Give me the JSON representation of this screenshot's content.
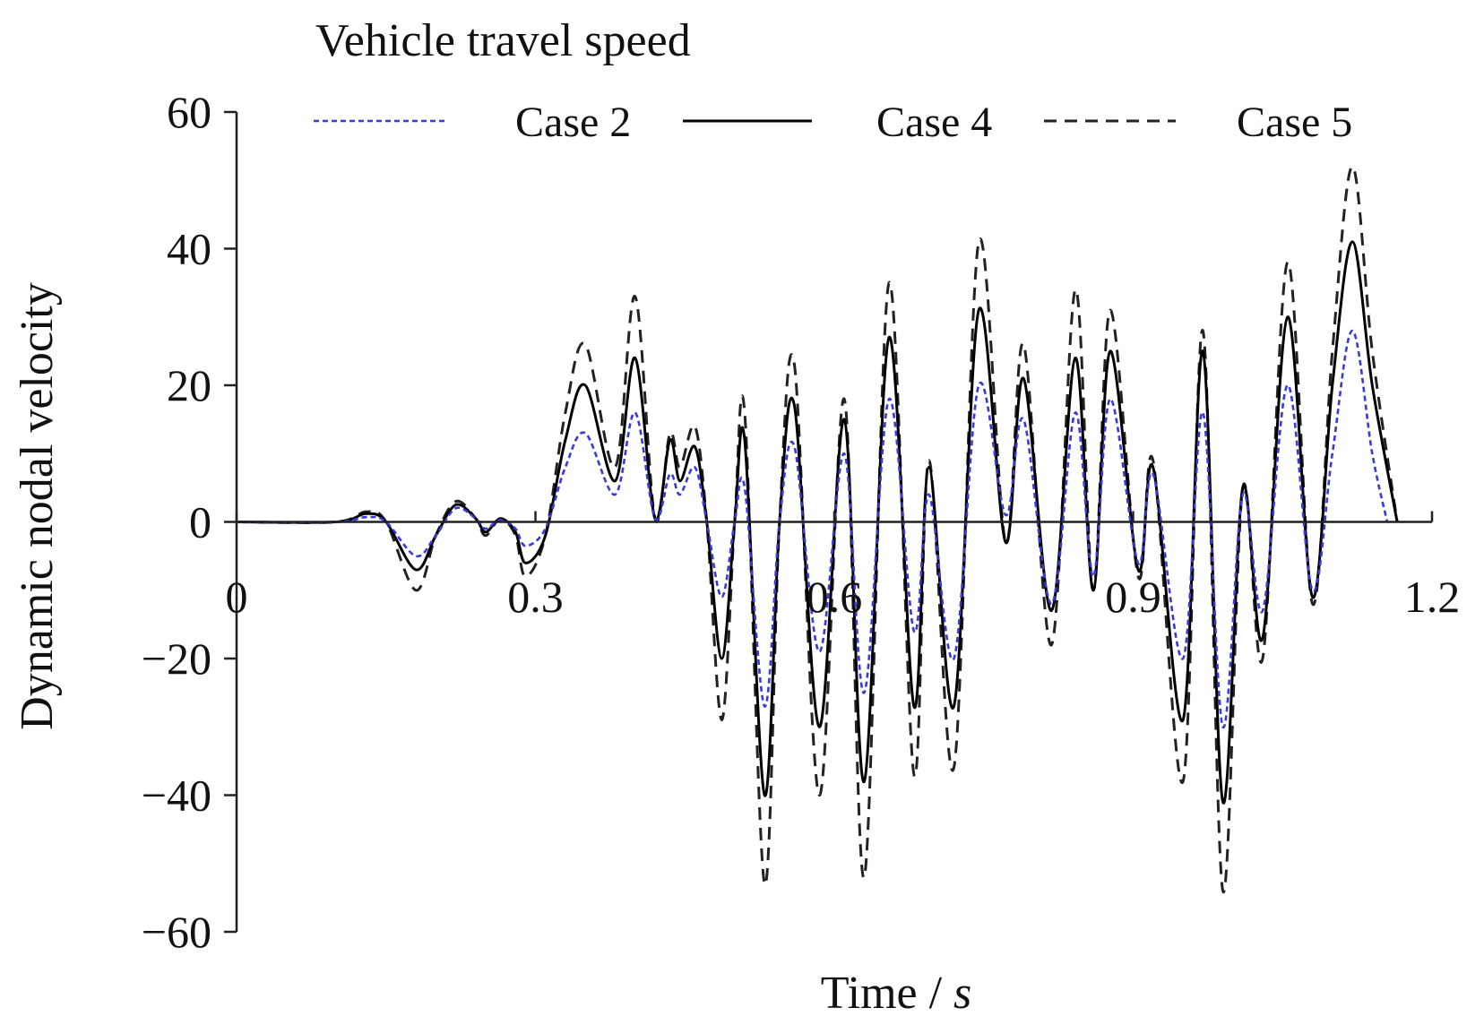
{
  "chart_data": {
    "type": "line",
    "title": "Vehicle travel speed",
    "xlabel": "Time / ",
    "xlabel_unit": "s",
    "ylabel": "Dynamic nodal velocity",
    "xlim": [
      0,
      1.2
    ],
    "ylim": [
      -60,
      60
    ],
    "x_ticks": [
      0,
      0.3,
      0.6,
      0.9,
      1.2
    ],
    "x_tick_labels": [
      "0",
      "0.3",
      "0.6",
      "0.9",
      "1.2"
    ],
    "y_ticks": [
      60,
      40,
      20,
      0,
      -20,
      -40,
      -60
    ],
    "y_tick_labels": [
      "60",
      "40",
      "20",
      "0",
      "−20",
      "−40",
      "−60"
    ],
    "grid": false,
    "legend_position": "top",
    "series": [
      {
        "name": "Case 2",
        "color": "#3a3ad8",
        "dash": "dotted",
        "points": [
          [
            0,
            0
          ],
          [
            0.1,
            0
          ],
          [
            0.13,
            0.7
          ],
          [
            0.15,
            0
          ],
          [
            0.18,
            -5
          ],
          [
            0.2,
            -2
          ],
          [
            0.22,
            2
          ],
          [
            0.24,
            0.5
          ],
          [
            0.25,
            -1
          ],
          [
            0.265,
            0.3
          ],
          [
            0.28,
            -1
          ],
          [
            0.29,
            -3.5
          ],
          [
            0.31,
            -1
          ],
          [
            0.33,
            8
          ],
          [
            0.35,
            13
          ],
          [
            0.38,
            4
          ],
          [
            0.4,
            16
          ],
          [
            0.42,
            0.5
          ],
          [
            0.435,
            7
          ],
          [
            0.445,
            4
          ],
          [
            0.46,
            8
          ],
          [
            0.472,
            0
          ],
          [
            0.487,
            -11
          ],
          [
            0.5,
            0
          ],
          [
            0.51,
            5
          ],
          [
            0.53,
            -27
          ],
          [
            0.545,
            0
          ],
          [
            0.56,
            11
          ],
          [
            0.585,
            -19
          ],
          [
            0.61,
            10
          ],
          [
            0.63,
            -25
          ],
          [
            0.655,
            18
          ],
          [
            0.68,
            -16
          ],
          [
            0.695,
            4
          ],
          [
            0.72,
            -20
          ],
          [
            0.745,
            20
          ],
          [
            0.772,
            1
          ],
          [
            0.79,
            15
          ],
          [
            0.818,
            -12
          ],
          [
            0.842,
            16
          ],
          [
            0.86,
            -8
          ],
          [
            0.877,
            18
          ],
          [
            0.905,
            -6
          ],
          [
            0.92,
            7
          ],
          [
            0.95,
            -20
          ],
          [
            0.97,
            16
          ],
          [
            0.99,
            -30
          ],
          [
            1.01,
            4
          ],
          [
            1.03,
            -13
          ],
          [
            1.055,
            20
          ],
          [
            1.08,
            -10
          ],
          [
            1.1,
            10
          ],
          [
            1.12,
            28
          ],
          [
            1.14,
            10
          ],
          [
            1.155,
            0
          ]
        ]
      },
      {
        "name": "Case 4",
        "color": "#000000",
        "dash": "solid",
        "points": [
          [
            0,
            0
          ],
          [
            0.1,
            0
          ],
          [
            0.13,
            1.2
          ],
          [
            0.15,
            0
          ],
          [
            0.18,
            -7
          ],
          [
            0.2,
            -2
          ],
          [
            0.22,
            2.5
          ],
          [
            0.24,
            0.5
          ],
          [
            0.25,
            -1.5
          ],
          [
            0.265,
            0.5
          ],
          [
            0.28,
            -1.5
          ],
          [
            0.29,
            -6
          ],
          [
            0.31,
            -2
          ],
          [
            0.33,
            12
          ],
          [
            0.35,
            20
          ],
          [
            0.38,
            6
          ],
          [
            0.4,
            24
          ],
          [
            0.42,
            0.5
          ],
          [
            0.435,
            12
          ],
          [
            0.445,
            6
          ],
          [
            0.46,
            11
          ],
          [
            0.472,
            0
          ],
          [
            0.487,
            -20
          ],
          [
            0.5,
            0
          ],
          [
            0.51,
            12
          ],
          [
            0.53,
            -40
          ],
          [
            0.545,
            0
          ],
          [
            0.56,
            17
          ],
          [
            0.585,
            -30
          ],
          [
            0.61,
            15
          ],
          [
            0.63,
            -38
          ],
          [
            0.655,
            27
          ],
          [
            0.68,
            -27
          ],
          [
            0.695,
            8
          ],
          [
            0.72,
            -27
          ],
          [
            0.745,
            31
          ],
          [
            0.772,
            -3
          ],
          [
            0.79,
            21
          ],
          [
            0.818,
            -13
          ],
          [
            0.842,
            24
          ],
          [
            0.86,
            -10
          ],
          [
            0.877,
            25
          ],
          [
            0.905,
            -7
          ],
          [
            0.92,
            8
          ],
          [
            0.95,
            -29
          ],
          [
            0.97,
            25
          ],
          [
            0.99,
            -41
          ],
          [
            1.01,
            5
          ],
          [
            1.03,
            -17
          ],
          [
            1.055,
            30
          ],
          [
            1.08,
            -11
          ],
          [
            1.1,
            20
          ],
          [
            1.12,
            41
          ],
          [
            1.14,
            20
          ],
          [
            1.165,
            0
          ]
        ]
      },
      {
        "name": "Case 5",
        "color": "#222222",
        "dash": "dashed",
        "points": [
          [
            0,
            0
          ],
          [
            0.1,
            0
          ],
          [
            0.13,
            1.5
          ],
          [
            0.15,
            0
          ],
          [
            0.18,
            -10
          ],
          [
            0.2,
            -2
          ],
          [
            0.22,
            3
          ],
          [
            0.24,
            0.5
          ],
          [
            0.25,
            -2
          ],
          [
            0.265,
            0.5
          ],
          [
            0.28,
            -2
          ],
          [
            0.29,
            -8
          ],
          [
            0.31,
            -2
          ],
          [
            0.33,
            16
          ],
          [
            0.35,
            26
          ],
          [
            0.38,
            8
          ],
          [
            0.4,
            33
          ],
          [
            0.42,
            0.5
          ],
          [
            0.435,
            13
          ],
          [
            0.445,
            8
          ],
          [
            0.46,
            14
          ],
          [
            0.472,
            0
          ],
          [
            0.487,
            -29
          ],
          [
            0.5,
            0
          ],
          [
            0.51,
            16
          ],
          [
            0.53,
            -53
          ],
          [
            0.545,
            0
          ],
          [
            0.56,
            23
          ],
          [
            0.585,
            -40
          ],
          [
            0.61,
            18
          ],
          [
            0.63,
            -52
          ],
          [
            0.655,
            35
          ],
          [
            0.68,
            -37
          ],
          [
            0.695,
            9
          ],
          [
            0.72,
            -36
          ],
          [
            0.745,
            41
          ],
          [
            0.772,
            -3
          ],
          [
            0.79,
            26
          ],
          [
            0.818,
            -18
          ],
          [
            0.842,
            34
          ],
          [
            0.86,
            -10
          ],
          [
            0.877,
            31
          ],
          [
            0.905,
            -8
          ],
          [
            0.92,
            9
          ],
          [
            0.95,
            -38
          ],
          [
            0.97,
            28
          ],
          [
            0.99,
            -54
          ],
          [
            1.01,
            5
          ],
          [
            1.03,
            -20
          ],
          [
            1.055,
            38
          ],
          [
            1.08,
            -12
          ],
          [
            1.1,
            25
          ],
          [
            1.12,
            52
          ],
          [
            1.14,
            25
          ],
          [
            1.165,
            0
          ]
        ]
      }
    ]
  }
}
